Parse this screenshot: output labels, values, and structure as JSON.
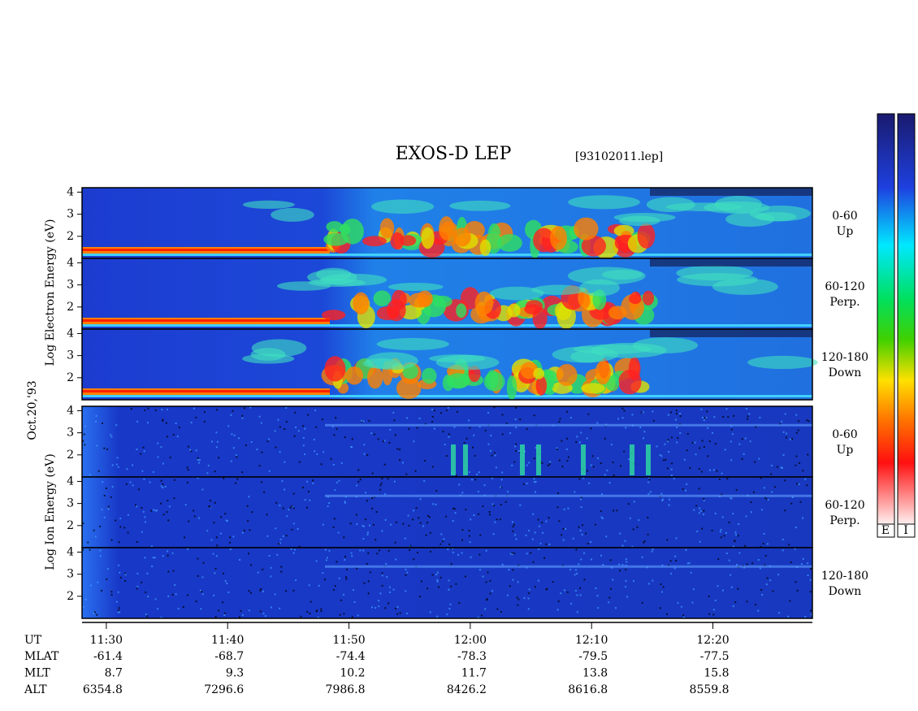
{
  "title": "EXOS-D LEP",
  "file": "[93102011.lep]",
  "date": "Oct.20,'93",
  "electron_axis_label": "Log Electron Energy (eV)",
  "ion_axis_label": "Log Ion Energy (eV)",
  "ylim": [
    1,
    4.2
  ],
  "yticks": [
    2,
    3,
    4
  ],
  "electron_panels": [
    {
      "angle": "0-60",
      "direction": "Up"
    },
    {
      "angle": "60-120",
      "direction": "Perp."
    },
    {
      "angle": "120-180",
      "direction": "Down"
    }
  ],
  "ion_panels": [
    {
      "angle": "0-60",
      "direction": "Up"
    },
    {
      "angle": "60-120",
      "direction": "Perp."
    },
    {
      "angle": "120-180",
      "direction": "Down"
    }
  ],
  "xlim": [
    688,
    748.2
  ],
  "xticks": [
    {
      "value": 690,
      "label": "11:30"
    },
    {
      "value": 700,
      "label": "11:40"
    },
    {
      "value": 710,
      "label": "11:50"
    },
    {
      "value": 720,
      "label": "12:00"
    },
    {
      "value": 730,
      "label": "12:10"
    },
    {
      "value": 740,
      "label": "12:20"
    }
  ],
  "time_row_name": "UT",
  "ephemeris": [
    {
      "name": "MLAT",
      "values": [
        -61.4,
        -68.7,
        -74.4,
        -78.3,
        -79.5,
        -77.5
      ]
    },
    {
      "name": "MLT",
      "values": [
        8.7,
        9.3,
        10.2,
        11.7,
        13.8,
        15.8
      ]
    },
    {
      "name": "ALT",
      "values": [
        6354.8,
        7296.6,
        7986.8,
        8426.2,
        8616.8,
        8559.8
      ]
    }
  ],
  "colorbar_labels": [
    "E",
    "I"
  ]
}
